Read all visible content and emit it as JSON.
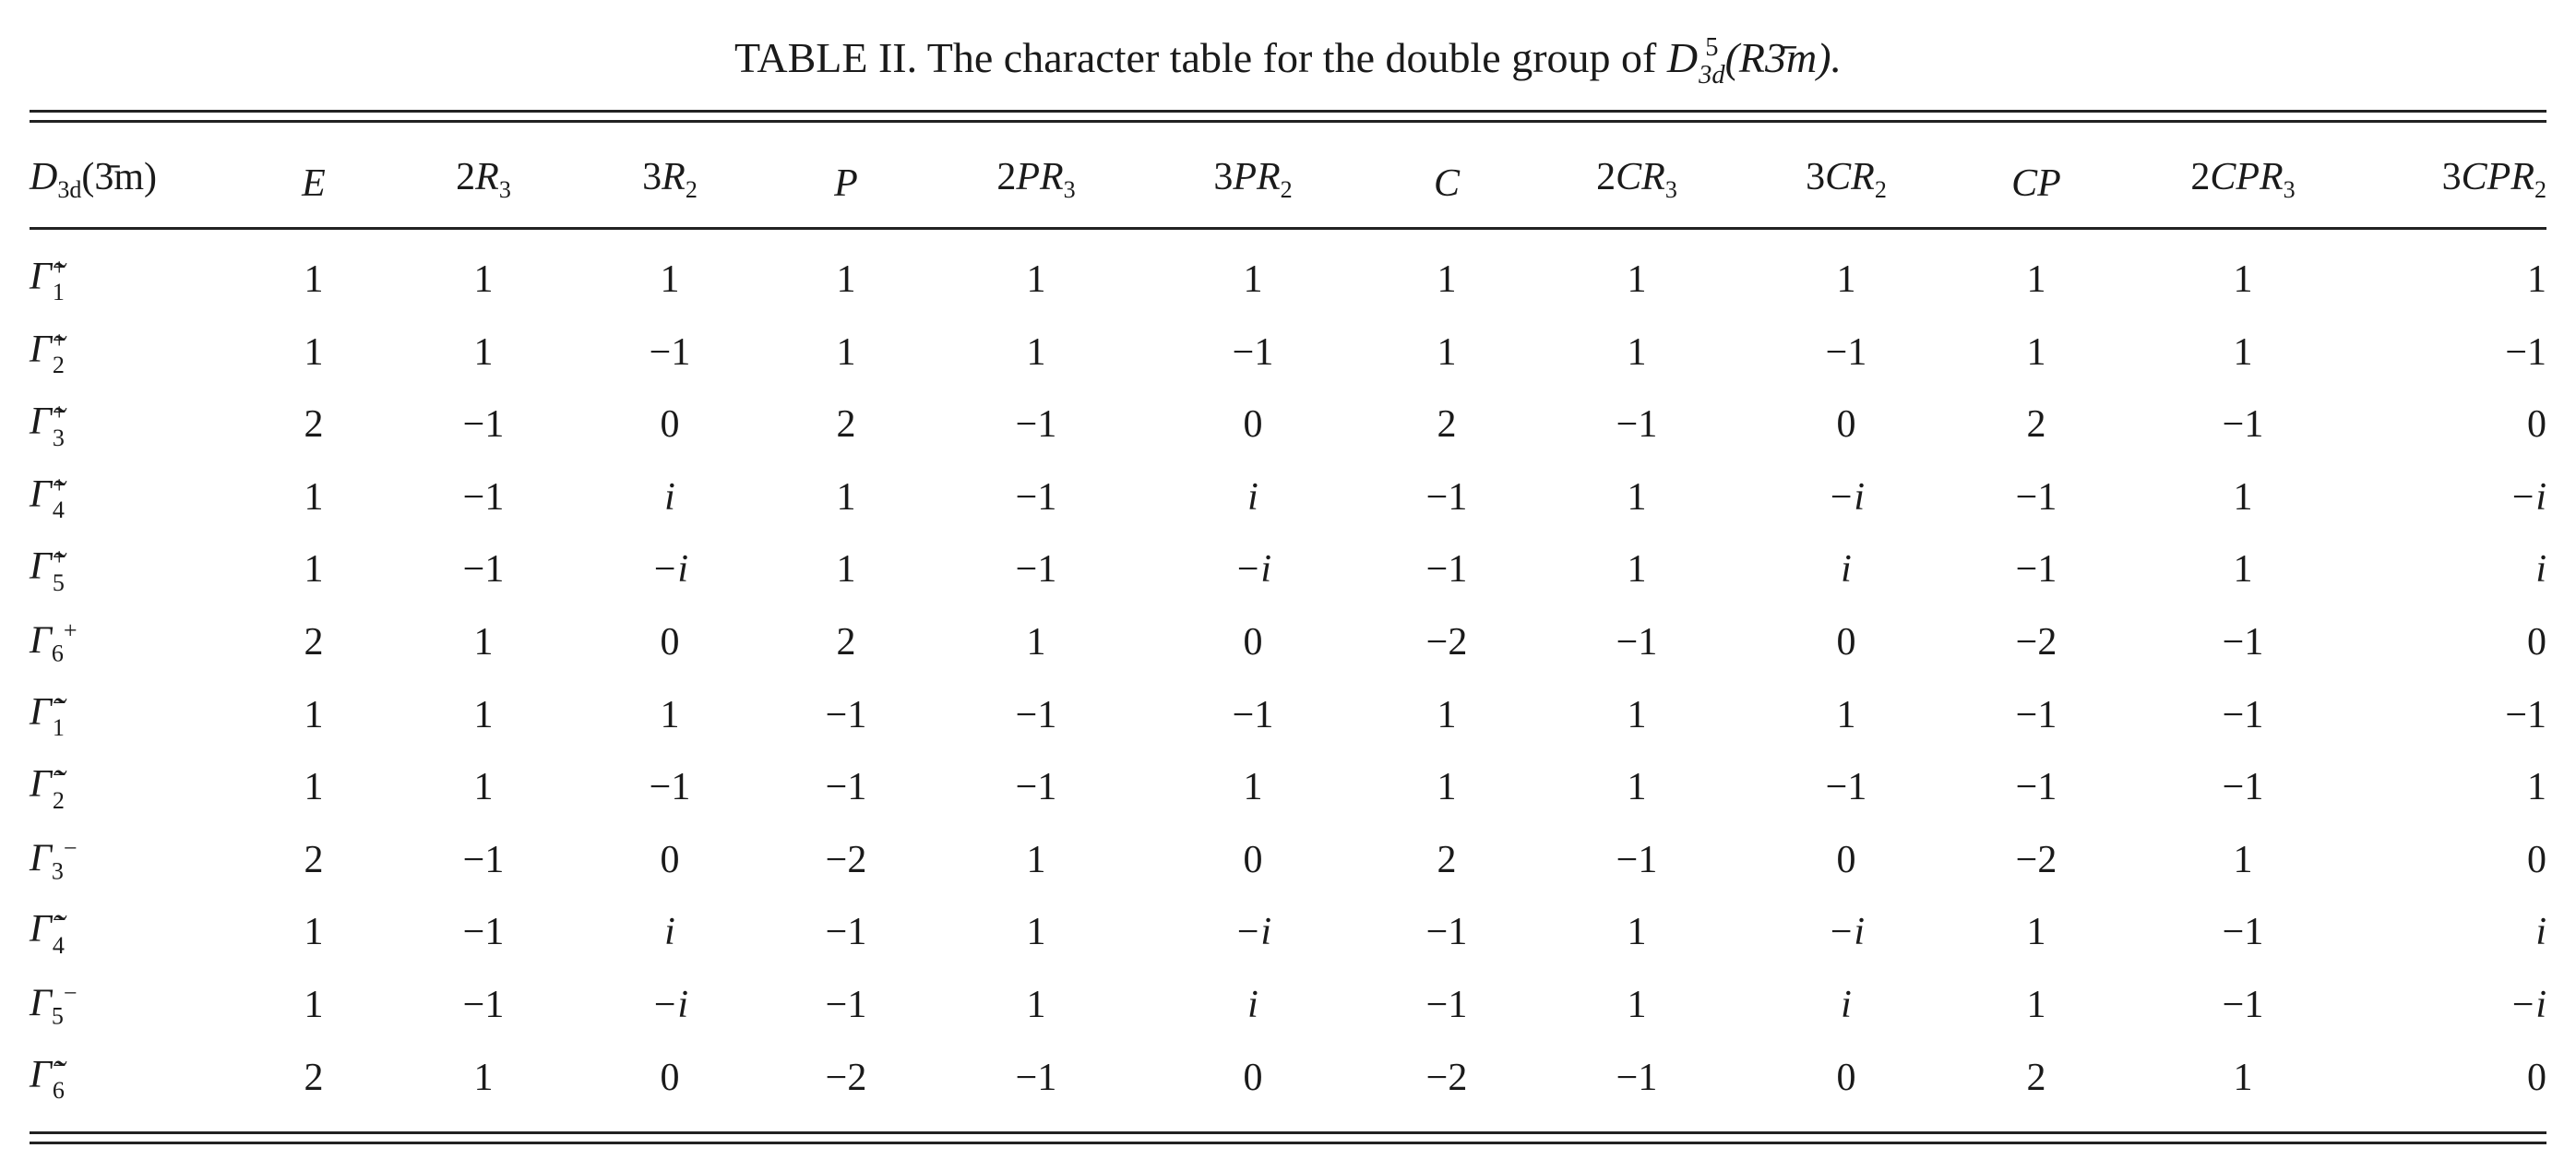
{
  "caption": {
    "text": "TABLE II. The character table for the double group of ",
    "symbol": "D",
    "sup": "5",
    "sub": "3d",
    "tail": "(R3̄m)."
  },
  "table": {
    "header": [
      {
        "text": "D",
        "sub": "3d",
        "tail": "(3̄m)"
      },
      {
        "text": "E"
      },
      {
        "coef": "2",
        "text": "R",
        "sub": "3"
      },
      {
        "coef": "3",
        "text": "R",
        "sub": "2"
      },
      {
        "text": "P"
      },
      {
        "coef": "2",
        "text": "PR",
        "sub": "3"
      },
      {
        "coef": "3",
        "text": "PR",
        "sub": "2"
      },
      {
        "text": "C"
      },
      {
        "coef": "2",
        "text": "CR",
        "sub": "3"
      },
      {
        "coef": "3",
        "text": "CR",
        "sub": "2"
      },
      {
        "text": "CP"
      },
      {
        "coef": "2",
        "text": "CPR",
        "sub": "3"
      },
      {
        "coef": "3",
        "text": "CPR",
        "sub": "2"
      }
    ],
    "rows": [
      {
        "label": {
          "symbol": "Γ̃",
          "sup": "+",
          "sub": "1"
        },
        "values": [
          "1",
          "1",
          "1",
          "1",
          "1",
          "1",
          "1",
          "1",
          "1",
          "1",
          "1",
          "1"
        ]
      },
      {
        "label": {
          "symbol": "Γ̃",
          "sup": "+",
          "sub": "2"
        },
        "values": [
          "1",
          "1",
          "−1",
          "1",
          "1",
          "−1",
          "1",
          "1",
          "−1",
          "1",
          "1",
          "−1"
        ]
      },
      {
        "label": {
          "symbol": "Γ̃",
          "sup": "+",
          "sub": "3"
        },
        "values": [
          "2",
          "−1",
          "0",
          "2",
          "−1",
          "0",
          "2",
          "−1",
          "0",
          "2",
          "−1",
          "0"
        ]
      },
      {
        "label": {
          "symbol": "Γ̃",
          "sup": "+",
          "sub": "4"
        },
        "values": [
          "1",
          "−1",
          "i",
          "1",
          "−1",
          "i",
          "−1",
          "1",
          "−i",
          "−1",
          "1",
          "−i"
        ]
      },
      {
        "label": {
          "symbol": "Γ̃",
          "sup": "+",
          "sub": "5"
        },
        "values": [
          "1",
          "−1",
          "−i",
          "1",
          "−1",
          "−i",
          "−1",
          "1",
          "i",
          "−1",
          "1",
          "i"
        ]
      },
      {
        "label": {
          "symbol": "Γ",
          "sub": "6",
          "sup": "+"
        },
        "values": [
          "2",
          "1",
          "0",
          "2",
          "1",
          "0",
          "−2",
          "−1",
          "0",
          "−2",
          "−1",
          "0"
        ]
      },
      {
        "label": {
          "symbol": "Γ̃",
          "sup": "−",
          "sub": "1"
        },
        "values": [
          "1",
          "1",
          "1",
          "−1",
          "−1",
          "−1",
          "1",
          "1",
          "1",
          "−1",
          "−1",
          "−1"
        ]
      },
      {
        "label": {
          "symbol": "Γ̃",
          "sup": "−",
          "sub": "2"
        },
        "values": [
          "1",
          "1",
          "−1",
          "−1",
          "−1",
          "1",
          "1",
          "1",
          "−1",
          "−1",
          "−1",
          "1"
        ]
      },
      {
        "label": {
          "symbol": "Γ",
          "sub": "3",
          "sup": "−"
        },
        "values": [
          "2",
          "−1",
          "0",
          "−2",
          "1",
          "0",
          "2",
          "−1",
          "0",
          "−2",
          "1",
          "0"
        ]
      },
      {
        "label": {
          "symbol": "Γ̃",
          "sup": "−",
          "sub": "4"
        },
        "values": [
          "1",
          "−1",
          "i",
          "−1",
          "1",
          "−i",
          "−1",
          "1",
          "−i",
          "1",
          "−1",
          "i"
        ]
      },
      {
        "label": {
          "symbol": "Γ",
          "sub": "5",
          "sup": "−"
        },
        "values": [
          "1",
          "−1",
          "−i",
          "−1",
          "1",
          "i",
          "−1",
          "1",
          "i",
          "1",
          "−1",
          "−i"
        ]
      },
      {
        "label": {
          "symbol": "Γ̃",
          "sup": "−",
          "sub": "6"
        },
        "values": [
          "2",
          "1",
          "0",
          "−2",
          "−1",
          "0",
          "−2",
          "−1",
          "0",
          "2",
          "1",
          "0"
        ]
      }
    ]
  }
}
